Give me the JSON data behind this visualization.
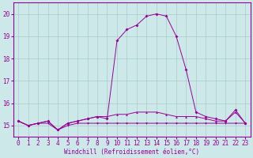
{
  "x": [
    0,
    1,
    2,
    3,
    4,
    5,
    6,
    7,
    8,
    9,
    10,
    11,
    12,
    13,
    14,
    15,
    16,
    17,
    18,
    19,
    20,
    21,
    22,
    23
  ],
  "line_flat": [
    15.2,
    15.0,
    15.1,
    15.1,
    14.8,
    15.0,
    15.1,
    15.1,
    15.1,
    15.1,
    15.1,
    15.1,
    15.1,
    15.1,
    15.1,
    15.1,
    15.1,
    15.1,
    15.1,
    15.1,
    15.1,
    15.1,
    15.1,
    15.1
  ],
  "line_mid": [
    15.2,
    15.0,
    15.1,
    15.2,
    14.8,
    15.1,
    15.2,
    15.3,
    15.4,
    15.4,
    15.5,
    15.5,
    15.6,
    15.6,
    15.6,
    15.5,
    15.4,
    15.4,
    15.4,
    15.3,
    15.2,
    15.2,
    15.6,
    15.1
  ],
  "line_peak": [
    15.2,
    15.0,
    15.1,
    15.2,
    14.8,
    15.1,
    15.2,
    15.3,
    15.4,
    15.3,
    18.8,
    19.3,
    19.5,
    19.9,
    20.0,
    19.9,
    19.0,
    17.5,
    15.6,
    15.4,
    15.3,
    15.2,
    15.7,
    15.1
  ],
  "color": "#990099",
  "bg_color": "#cce8e8",
  "grid_color": "#aacccc",
  "xlabel": "Windchill (Refroidissement éolien,°C)",
  "ylim": [
    14.5,
    20.5
  ],
  "xlim": [
    -0.5,
    23.5
  ],
  "yticks": [
    15,
    16,
    17,
    18,
    19,
    20
  ],
  "xticks": [
    0,
    1,
    2,
    3,
    4,
    5,
    6,
    7,
    8,
    9,
    10,
    11,
    12,
    13,
    14,
    15,
    16,
    17,
    18,
    19,
    20,
    21,
    22,
    23
  ],
  "xlabel_fontsize": 5.5,
  "tick_fontsize": 5.5
}
